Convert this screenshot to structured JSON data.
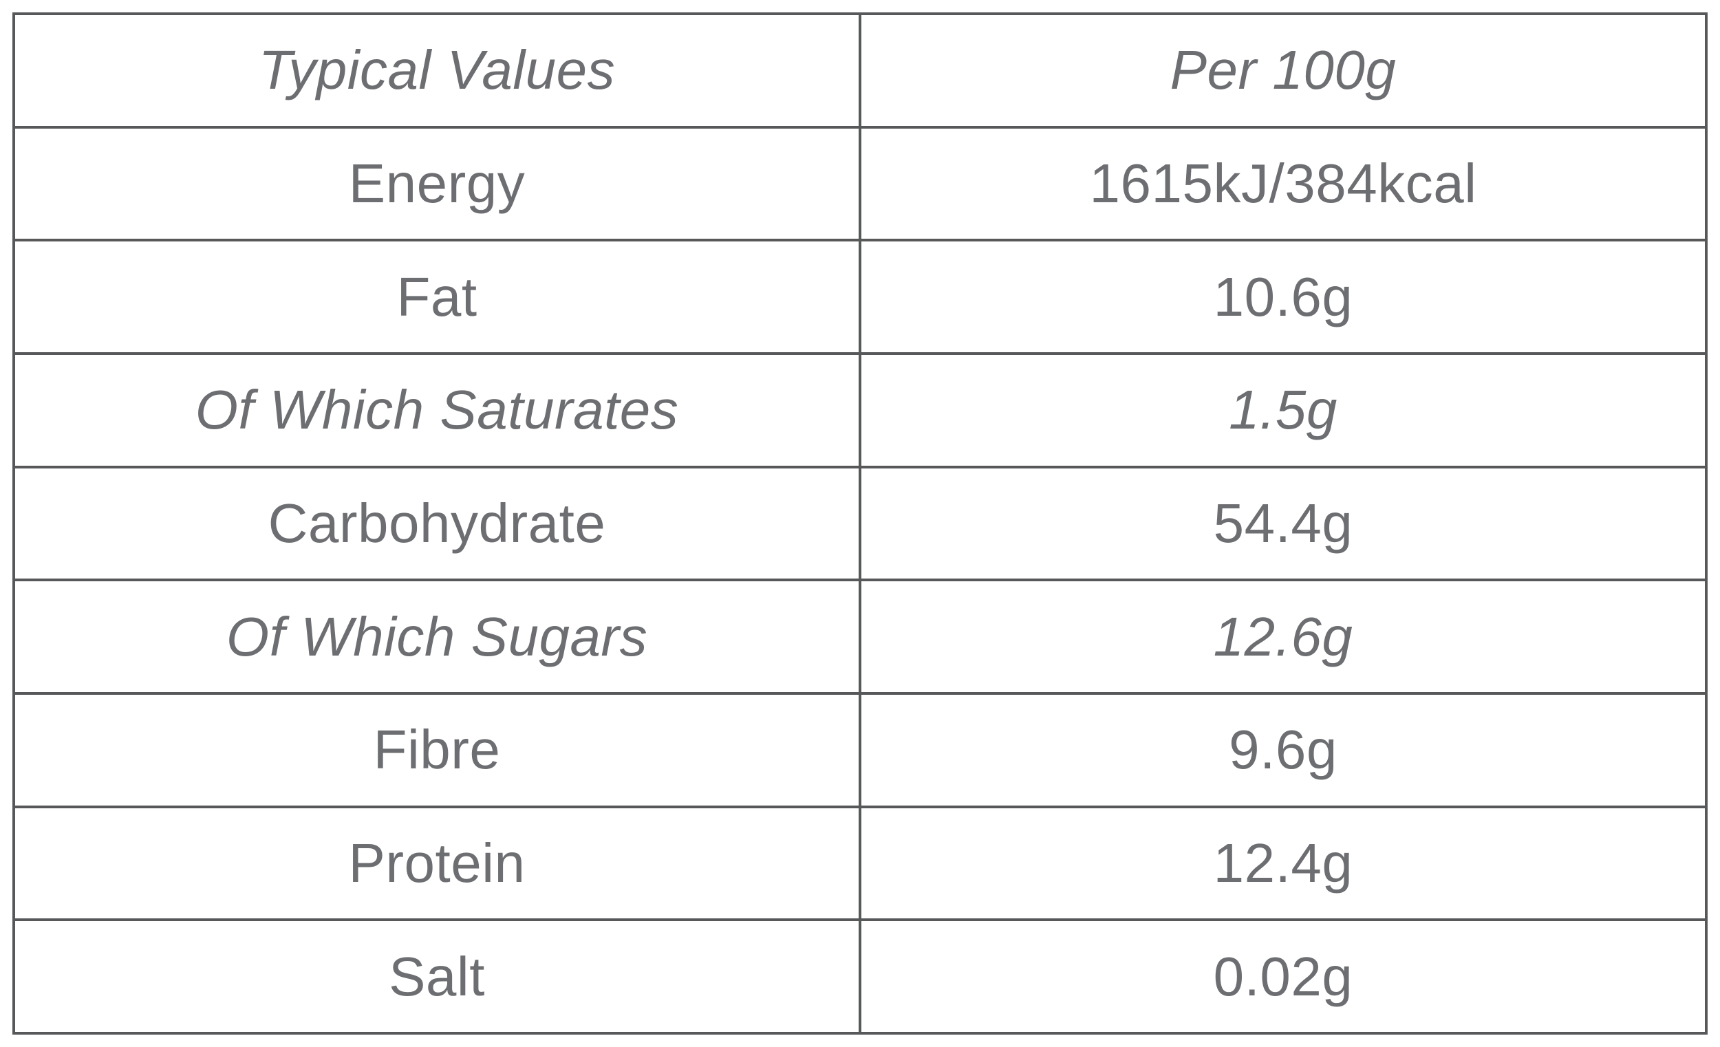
{
  "table": {
    "header": {
      "col1": "Typical Values",
      "col2": "Per 100g"
    },
    "rows": [
      {
        "label": "Energy",
        "value": "1615kJ/384kcal",
        "italic": false
      },
      {
        "label": "Fat",
        "value": "10.6g",
        "italic": false
      },
      {
        "label": "Of Which Saturates",
        "value": "1.5g",
        "italic": true
      },
      {
        "label": "Carbohydrate",
        "value": "54.4g",
        "italic": false
      },
      {
        "label": "Of Which Sugars",
        "value": "12.6g",
        "italic": true
      },
      {
        "label": "Fibre",
        "value": "9.6g",
        "italic": false
      },
      {
        "label": "Protein",
        "value": "12.4g",
        "italic": false
      },
      {
        "label": "Salt",
        "value": "0.02g",
        "italic": false
      }
    ]
  },
  "colors": {
    "text": "#6d6e71",
    "border": "#57585a",
    "background": "#ffffff"
  }
}
